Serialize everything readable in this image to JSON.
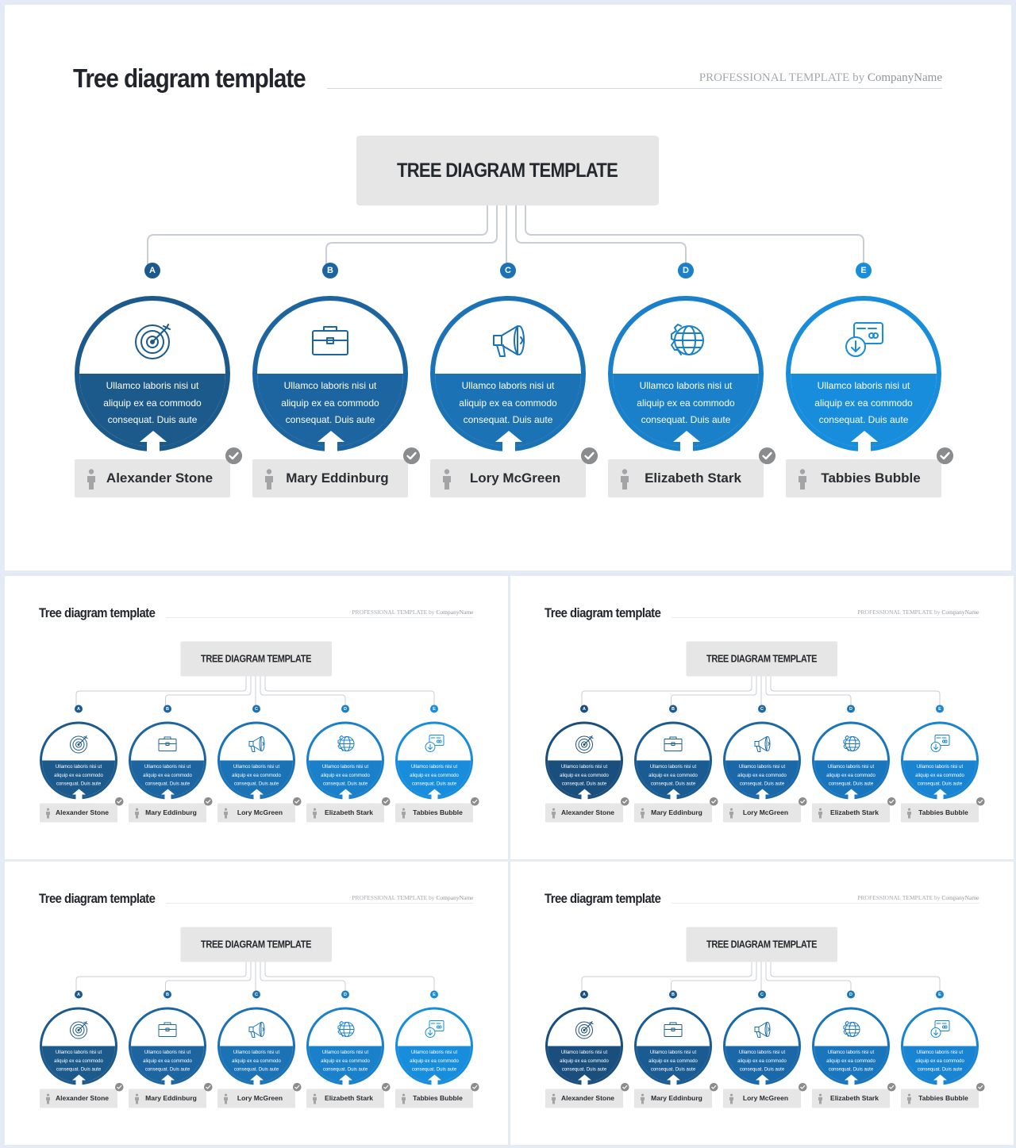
{
  "slides": [
    {
      "title": "Tree diagram template",
      "subtitle_prefix": "PROFESSIONAL TEMPLATE by",
      "subtitle_company": "CompanyName",
      "root": "TREE DIAGRAM TEMPLATE",
      "nodes": [
        {
          "letter": "A",
          "text": "Ullamco laboris nisi ut aliquip ex ea commodo consequat. Duis aute",
          "name": "Alexander Stone",
          "icon": "target-icon",
          "color": "#1d5a8c"
        },
        {
          "letter": "B",
          "text": "Ullamco laboris nisi ut aliquip ex ea commodo consequat. Duis aute",
          "name": "Mary Eddinburg",
          "icon": "briefcase-icon",
          "color": "#1c65a0"
        },
        {
          "letter": "C",
          "text": "Ullamco laboris nisi ut aliquip ex ea commodo consequat. Duis aute",
          "name": "Lory McGreen",
          "icon": "megaphone-icon",
          "color": "#1b72b5"
        },
        {
          "letter": "D",
          "text": "Ullamco laboris nisi ut aliquip ex ea commodo consequat. Duis aute",
          "name": "Elizabeth Stark",
          "icon": "globe-gear-icon",
          "color": "#1980c9"
        },
        {
          "letter": "E",
          "text": "Ullamco laboris nisi ut aliquip ex ea commodo consequat. Duis aute",
          "name": "Tabbies Bubble",
          "icon": "payment-icon",
          "color": "#188ddb"
        }
      ]
    },
    {
      "title": "Tree diagram template",
      "subtitle_prefix": "PROFESSIONAL TEMPLATE by",
      "subtitle_company": "CompanyName",
      "root": "TREE DIAGRAM TEMPLATE",
      "nodes": [
        {
          "letter": "A",
          "text": "Ullamco laboris nisi ut aliquip ex ea commodo consequat. Duis aute",
          "name": "Alexander Stone",
          "icon": "target-icon",
          "color": "#1d5a8c"
        },
        {
          "letter": "B",
          "text": "Ullamco laboris nisi ut aliquip ex ea commodo consequat. Duis aute",
          "name": "Mary Eddinburg",
          "icon": "briefcase-icon",
          "color": "#1c65a0"
        },
        {
          "letter": "C",
          "text": "Ullamco laboris nisi ut aliquip ex ea commodo consequat. Duis aute",
          "name": "Lory McGreen",
          "icon": "megaphone-icon",
          "color": "#1b72b5"
        },
        {
          "letter": "D",
          "text": "Ullamco laboris nisi ut aliquip ex ea commodo consequat. Duis aute",
          "name": "Elizabeth Stark",
          "icon": "globe-gear-icon",
          "color": "#1980c9"
        },
        {
          "letter": "E",
          "text": "Ullamco laboris nisi ut aliquip ex ea commodo consequat. Duis aute",
          "name": "Tabbies Bubble",
          "icon": "payment-icon",
          "color": "#188ddb"
        }
      ]
    },
    {
      "title": "Tree diagram template",
      "subtitle_prefix": "PROFESSIONAL TEMPLATE by",
      "subtitle_company": "CompanyName",
      "root": "TREE DIAGRAM TEMPLATE",
      "nodes": [
        {
          "letter": "A",
          "text": "Ullamco laboris nisi ut aliquip ex ea commodo consequat. Duis aute",
          "name": "Alexander Stone",
          "icon": "target-icon",
          "color": "#1a4f7d"
        },
        {
          "letter": "B",
          "text": "Ullamco laboris nisi ut aliquip ex ea commodo consequat. Duis aute",
          "name": "Mary Eddinburg",
          "icon": "briefcase-icon",
          "color": "#1a5b92"
        },
        {
          "letter": "C",
          "text": "Ullamco laboris nisi ut aliquip ex ea commodo consequat. Duis aute",
          "name": "Lory McGreen",
          "icon": "megaphone-icon",
          "color": "#1a68a8"
        },
        {
          "letter": "D",
          "text": "Ullamco laboris nisi ut aliquip ex ea commodo consequat. Duis aute",
          "name": "Elizabeth Stark",
          "icon": "globe-gear-icon",
          "color": "#1976bd"
        },
        {
          "letter": "E",
          "text": "Ullamco laboris nisi ut aliquip ex ea commodo consequat. Duis aute",
          "name": "Tabbies Bubble",
          "icon": "payment-icon",
          "color": "#1884d2"
        }
      ]
    },
    {
      "title": "Tree diagram template",
      "subtitle_prefix": "PROFESSIONAL TEMPLATE by",
      "subtitle_company": "CompanyName",
      "root": "TREE DIAGRAM TEMPLATE",
      "nodes": [
        {
          "letter": "A",
          "text": "Ullamco laboris nisi ut aliquip ex ea commodo consequat. Duis aute",
          "name": "Alexander Stone",
          "icon": "target-icon",
          "color": "#1d5a8c"
        },
        {
          "letter": "B",
          "text": "Ullamco laboris nisi ut aliquip ex ea commodo consequat. Duis aute",
          "name": "Mary Eddinburg",
          "icon": "briefcase-icon",
          "color": "#1c65a0"
        },
        {
          "letter": "C",
          "text": "Ullamco laboris nisi ut aliquip ex ea commodo consequat. Duis aute",
          "name": "Lory McGreen",
          "icon": "megaphone-icon",
          "color": "#1b72b5"
        },
        {
          "letter": "D",
          "text": "Ullamco laboris nisi ut aliquip ex ea commodo consequat. Duis aute",
          "name": "Elizabeth Stark",
          "icon": "globe-gear-icon",
          "color": "#1980c9"
        },
        {
          "letter": "E",
          "text": "Ullamco laboris nisi ut aliquip ex ea commodo consequat. Duis aute",
          "name": "Tabbies Bubble",
          "icon": "payment-icon",
          "color": "#188ddb"
        }
      ]
    },
    {
      "title": "Tree diagram template",
      "subtitle_prefix": "PROFESSIONAL TEMPLATE by",
      "subtitle_company": "CompanyName",
      "root": "TREE DIAGRAM TEMPLATE",
      "nodes": [
        {
          "letter": "A",
          "text": "Ullamco laboris nisi ut aliquip ex ea commodo consequat. Duis aute",
          "name": "Alexander Stone",
          "icon": "target-icon",
          "color": "#1a4f7d"
        },
        {
          "letter": "B",
          "text": "Ullamco laboris nisi ut aliquip ex ea commodo consequat. Duis aute",
          "name": "Mary Eddinburg",
          "icon": "briefcase-icon",
          "color": "#1a5b92"
        },
        {
          "letter": "C",
          "text": "Ullamco laboris nisi ut aliquip ex ea commodo consequat. Duis aute",
          "name": "Lory McGreen",
          "icon": "megaphone-icon",
          "color": "#1a68a8"
        },
        {
          "letter": "D",
          "text": "Ullamco laboris nisi ut aliquip ex ea commodo consequat. Duis aute",
          "name": "Elizabeth Stark",
          "icon": "globe-gear-icon",
          "color": "#1976bd"
        },
        {
          "letter": "E",
          "text": "Ullamco laboris nisi ut aliquip ex ea commodo consequat. Duis aute",
          "name": "Tabbies Bubble",
          "icon": "payment-icon",
          "color": "#1884d2"
        }
      ]
    }
  ]
}
